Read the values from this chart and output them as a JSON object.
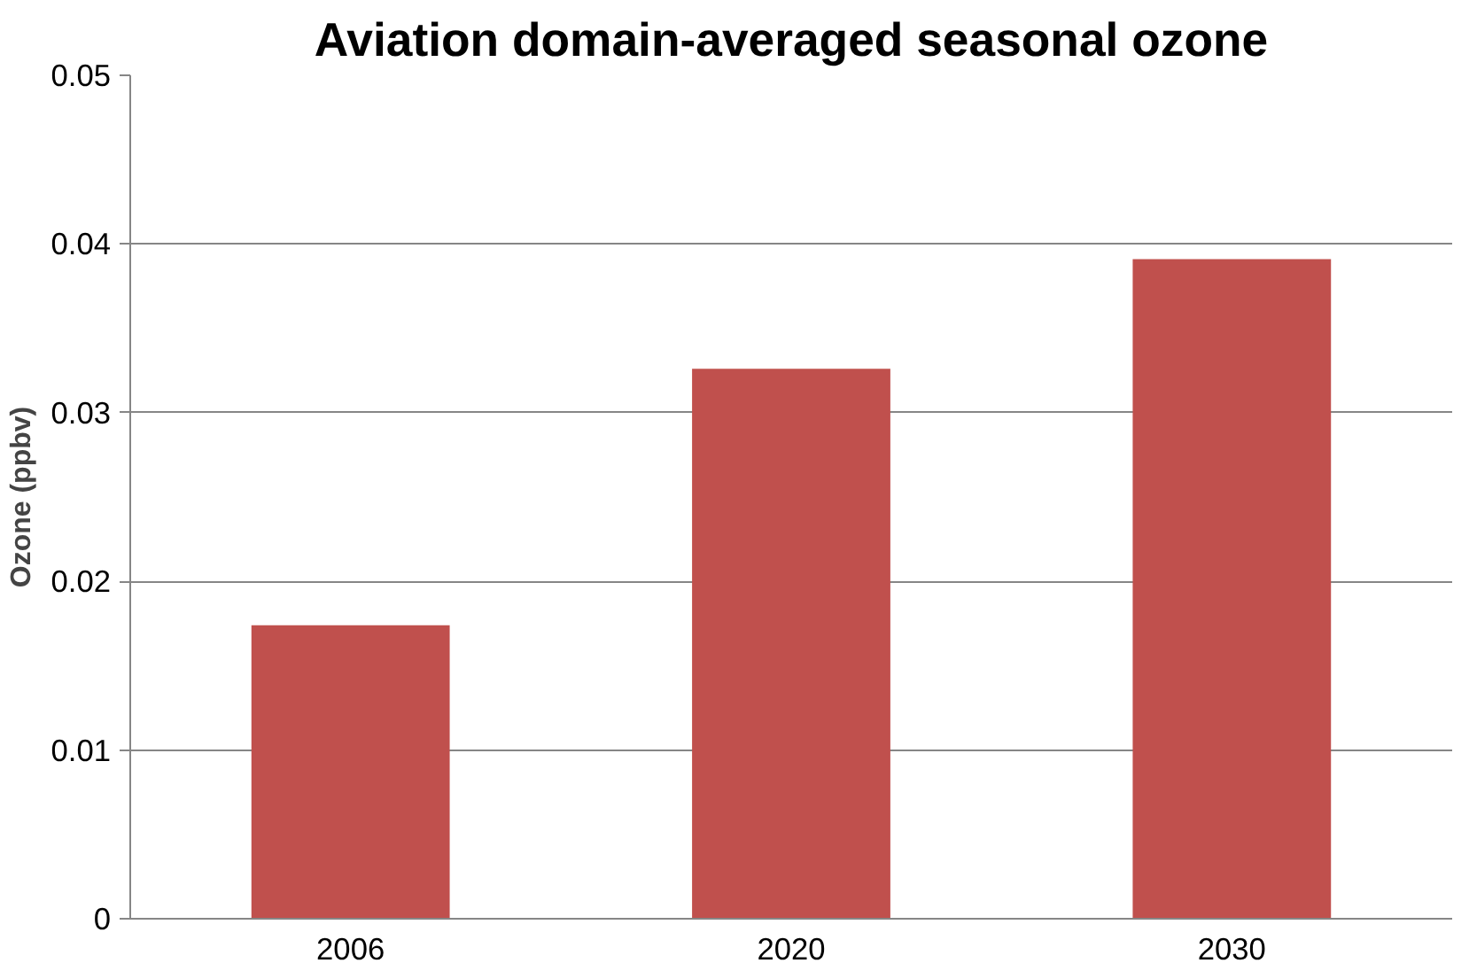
{
  "chart_data": {
    "type": "bar",
    "title": "Aviation domain-averaged seasonal ozone",
    "ylabel": "Ozone (ppbv)",
    "categories": [
      "2006",
      "2020",
      "2030"
    ],
    "values": [
      0.0174,
      0.0326,
      0.0391
    ],
    "color": "#c0504d",
    "ylim": [
      0,
      0.05
    ],
    "yticks": [
      0,
      {
        "value": 0.01,
        "label": "0.01"
      },
      {
        "value": 0.02,
        "label": "0.02"
      },
      {
        "value": 0.03,
        "label": "0.03"
      },
      {
        "value": 0.04,
        "label": "0.04"
      },
      {
        "value": 0.05,
        "label": "0.05"
      }
    ],
    "grid": "y"
  }
}
